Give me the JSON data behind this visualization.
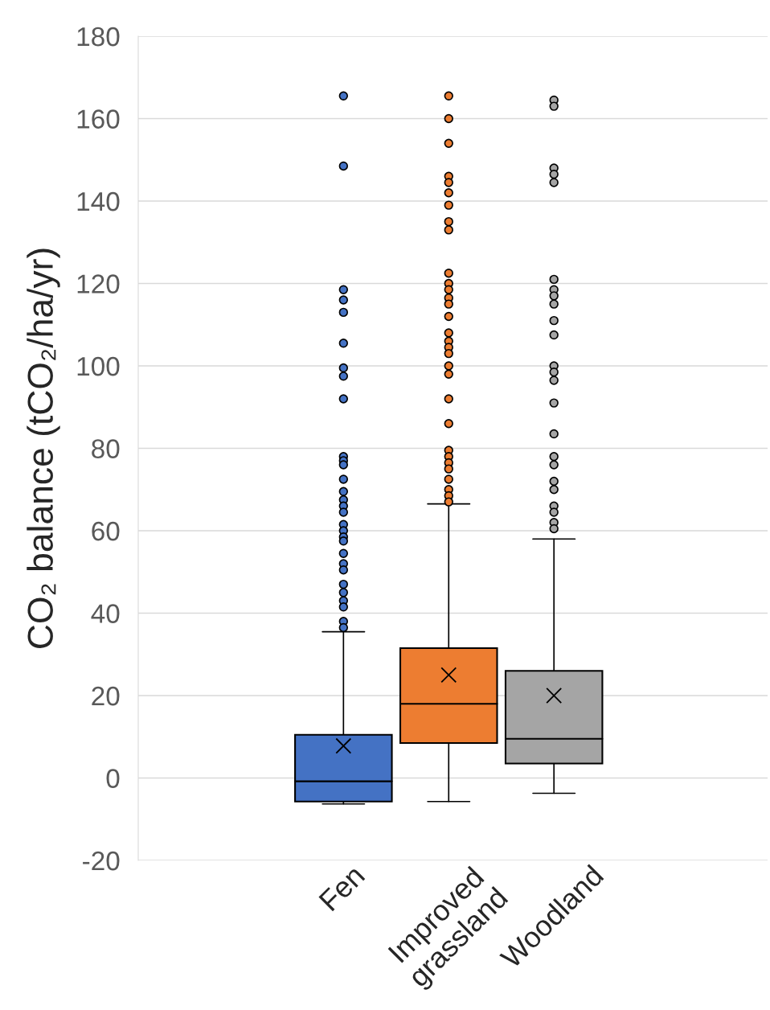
{
  "chart_data": {
    "type": "box",
    "ylabel": "CO₂ balance (tCO₂/ha/yr)",
    "categories": [
      "Fen",
      "Improved\ngrassland",
      "Woodland"
    ],
    "colors": [
      "#4472c4",
      "#ed7d31",
      "#a5a5a5"
    ],
    "boxes": [
      {
        "low": -6.3,
        "q1": -5.7,
        "median": -0.8,
        "q3": 10.5,
        "high": 35.5,
        "mean": 7.8,
        "outliers": [
          165.5,
          148.5,
          118.5,
          116,
          113,
          105.5,
          99.5,
          97.5,
          92,
          78,
          77,
          76,
          72.5,
          69.5,
          67.5,
          66,
          64.5,
          61.5,
          60,
          58.5,
          57.5,
          54.5,
          52,
          50.5,
          47,
          45,
          43,
          41.5,
          38,
          36.5
        ]
      },
      {
        "low": -5.7,
        "q1": 8.5,
        "median": 18,
        "q3": 31.5,
        "high": 66.5,
        "mean": 25,
        "outliers": [
          165.5,
          160,
          154,
          146,
          144.5,
          142,
          139,
          135,
          133,
          122.5,
          120,
          118.5,
          116.5,
          115,
          112,
          108,
          106,
          104.5,
          103,
          100,
          98,
          92,
          86,
          79.5,
          78,
          76.5,
          75,
          72.5,
          70,
          68.5,
          67
        ]
      },
      {
        "low": -3.7,
        "q1": 3.5,
        "median": 9.5,
        "q3": 26,
        "high": 58,
        "mean": 20,
        "outliers": [
          164.5,
          163,
          148,
          146.5,
          144.5,
          121,
          118.5,
          117,
          115,
          111,
          107.5,
          100,
          98.5,
          96.5,
          91,
          83.5,
          78,
          76,
          72,
          70,
          66,
          64.5,
          62,
          60.5
        ]
      }
    ],
    "ylim": [
      -20,
      180
    ],
    "yticks": [
      -20,
      0,
      20,
      40,
      60,
      80,
      100,
      120,
      140,
      160,
      180
    ],
    "grid": "y",
    "marker": "circle"
  }
}
